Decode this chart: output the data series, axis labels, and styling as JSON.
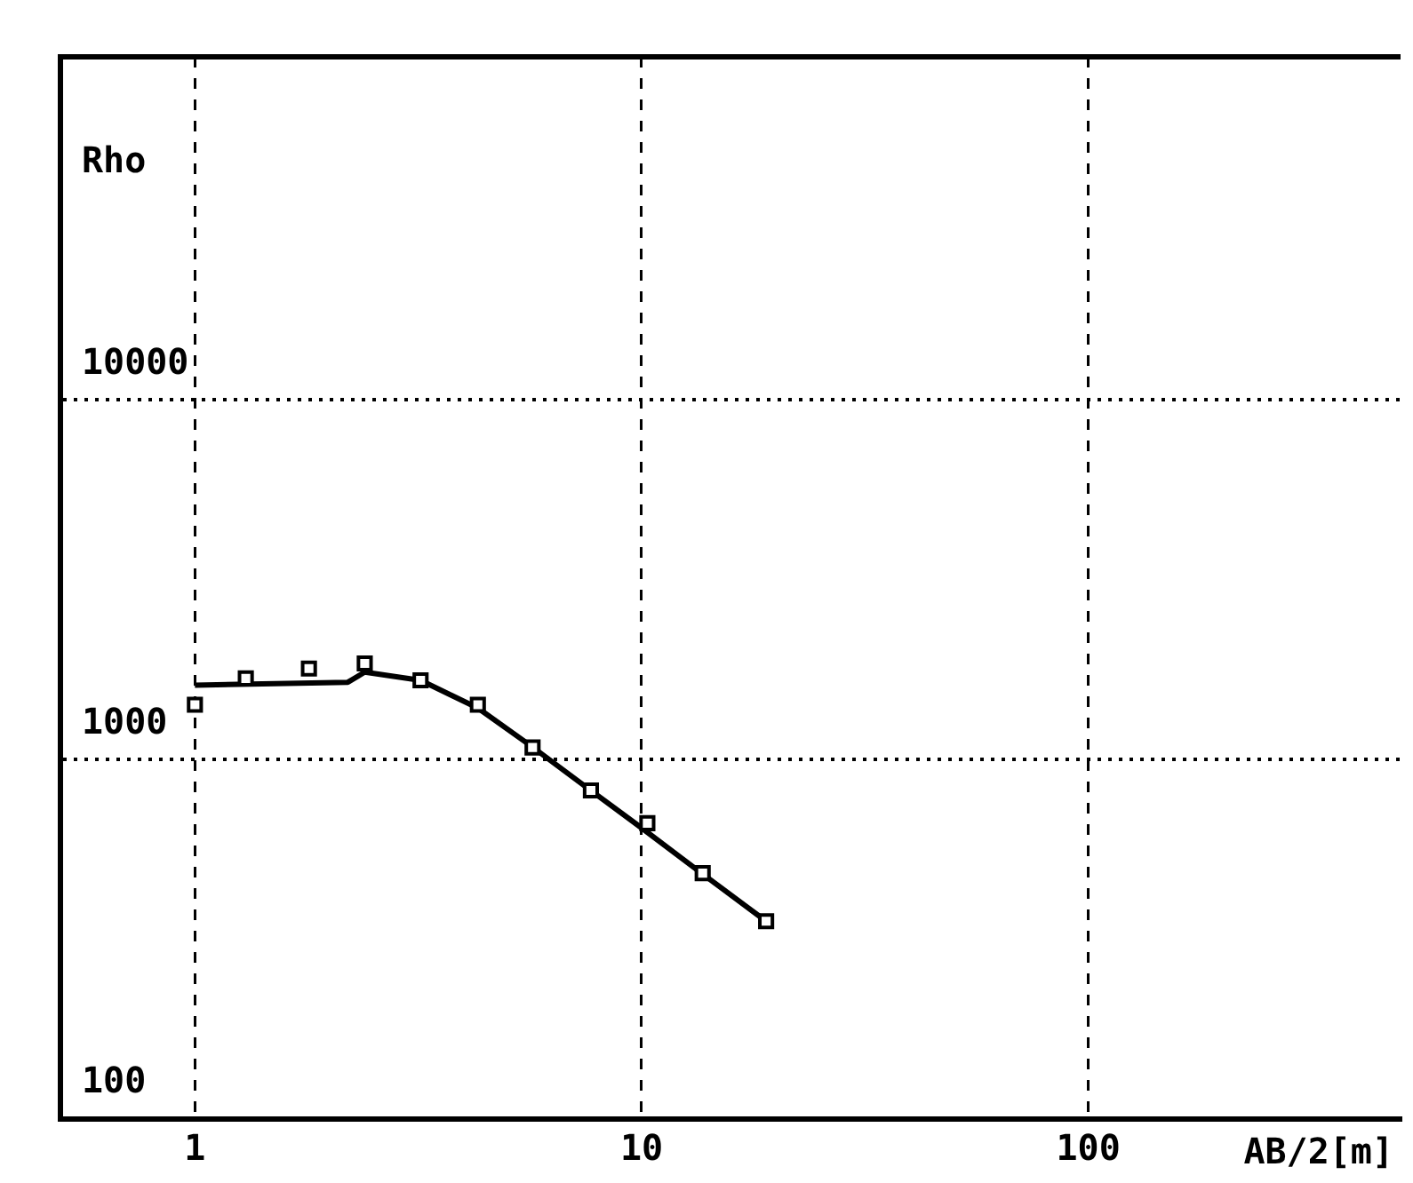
{
  "chart_data": {
    "type": "scatter",
    "xlabel": "AB/2[m]",
    "ylabel": "Rho",
    "log": "xy",
    "xlim": [
      0.5,
      500
    ],
    "ylim": [
      100,
      90000
    ],
    "xticks": [
      1,
      10,
      100
    ],
    "yticks": [
      100,
      1000,
      10000
    ],
    "grid": true,
    "legend": false,
    "series": [
      {
        "color": "#000000",
        "marker": "square",
        "x": [
          1,
          1.3,
          1.8,
          2.4,
          3.2,
          4.3,
          5.7,
          7.7,
          10.3,
          13.7,
          19
        ],
        "values": [
          1420,
          1680,
          1790,
          1850,
          1660,
          1420,
          1080,
          820,
          665,
          483,
          355
        ]
      },
      {
        "type": "line",
        "color": "#000000",
        "marker": "none",
        "line_style": "solid",
        "x": [
          1,
          2.2,
          2.4,
          3.2,
          4.3,
          5.6,
          7.5,
          10,
          13.7,
          19
        ],
        "values": [
          1610,
          1640,
          1750,
          1660,
          1390,
          1100,
          840,
          645,
          480,
          355
        ]
      }
    ]
  }
}
